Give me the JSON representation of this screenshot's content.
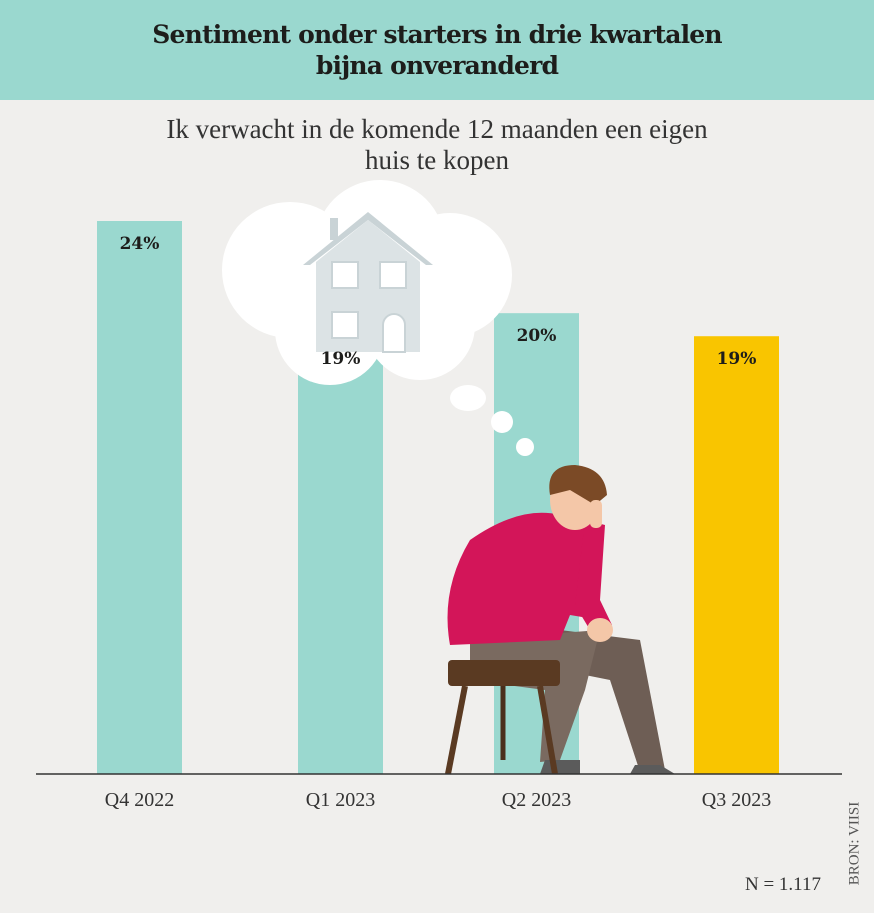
{
  "chart_data": {
    "type": "bar",
    "title": "Sentiment onder starters in drie kwartalen bijna onveranderd",
    "subtitle": "Ik verwacht in de komende 12 maanden een eigen huis te kopen",
    "categories": [
      "Q4 2022",
      "Q1 2023",
      "Q2 2023",
      "Q3 2023"
    ],
    "values": [
      24,
      19,
      20,
      19
    ],
    "data_labels": [
      "24%",
      "19%",
      "20%",
      "19%"
    ],
    "ylim": [
      0,
      24
    ],
    "grid": false,
    "colors": [
      "#9ad8cf",
      "#9ad8cf",
      "#9ad8cf",
      "#f9c500"
    ],
    "note": "N = 1.117",
    "source": "BRON: VIISI"
  },
  "header_color": "#9ad8cf"
}
